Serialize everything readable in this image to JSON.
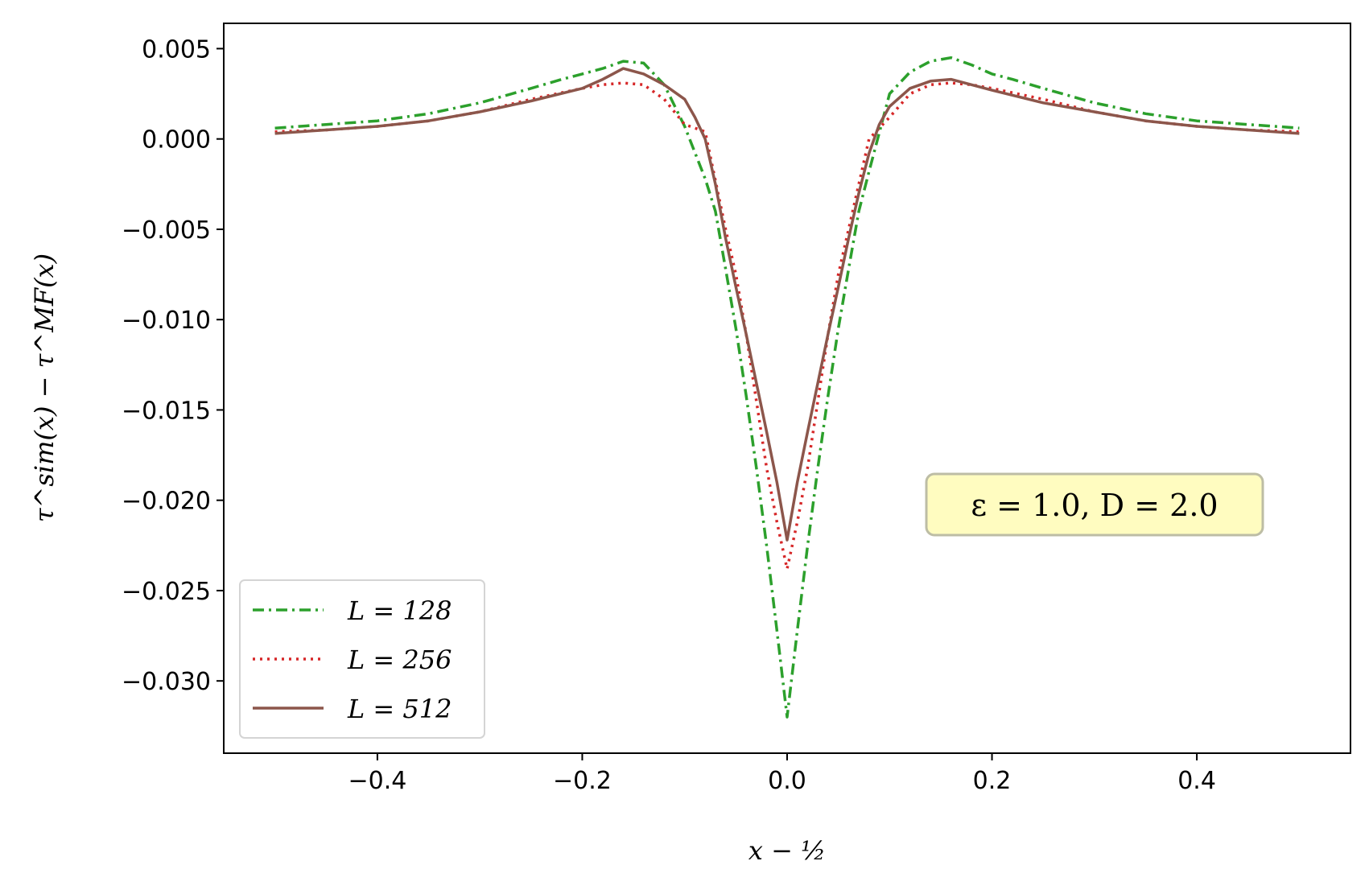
{
  "chart_data": {
    "type": "line",
    "title": "",
    "xlabel": "x − ½",
    "ylabel": "τ^sim(x) − τ^MF(x)",
    "xlim": [
      -0.55,
      0.55
    ],
    "ylim": [
      -0.034,
      0.0064
    ],
    "xticks": [
      -0.4,
      -0.2,
      0.0,
      0.2,
      0.4
    ],
    "xtick_labels": [
      "−0.4",
      "−0.2",
      "0.0",
      "0.2",
      "0.4"
    ],
    "yticks": [
      0.005,
      0.0,
      -0.005,
      -0.01,
      -0.015,
      -0.02,
      -0.025,
      -0.03
    ],
    "ytick_labels": [
      "0.005",
      "0.000",
      "−0.005",
      "−0.010",
      "−0.015",
      "−0.020",
      "−0.025",
      "−0.030"
    ],
    "grid": false,
    "legend_position": "lower-left",
    "annotation": "ε = 1.0,  D = 2.0",
    "annotation_box_color": "#fffcc0",
    "series": [
      {
        "name": "L = 128",
        "color": "#2ca02c",
        "line_style": "dash-dot",
        "x": [
          -0.5,
          -0.45,
          -0.4,
          -0.35,
          -0.3,
          -0.25,
          -0.22,
          -0.2,
          -0.18,
          -0.16,
          -0.14,
          -0.12,
          -0.1,
          -0.08,
          -0.07,
          -0.06,
          -0.05,
          -0.04,
          -0.03,
          -0.02,
          -0.01,
          0.0,
          0.01,
          0.02,
          0.03,
          0.04,
          0.05,
          0.06,
          0.07,
          0.08,
          0.1,
          0.12,
          0.14,
          0.16,
          0.18,
          0.2,
          0.22,
          0.25,
          0.3,
          0.35,
          0.4,
          0.45,
          0.5
        ],
        "y": [
          0.0006,
          0.0008,
          0.001,
          0.0014,
          0.002,
          0.0028,
          0.0033,
          0.0036,
          0.0039,
          0.0043,
          0.0042,
          0.003,
          0.0007,
          -0.0022,
          -0.004,
          -0.0072,
          -0.0105,
          -0.0142,
          -0.0182,
          -0.0225,
          -0.0272,
          -0.032,
          -0.0272,
          -0.0225,
          -0.0182,
          -0.0142,
          -0.0105,
          -0.0072,
          -0.004,
          -0.0018,
          0.0025,
          0.0037,
          0.0043,
          0.0045,
          0.0041,
          0.0036,
          0.0033,
          0.0028,
          0.002,
          0.0014,
          0.001,
          0.0008,
          0.0006
        ]
      },
      {
        "name": "L = 256",
        "color": "#d62728",
        "line_style": "dotted",
        "x": [
          -0.5,
          -0.45,
          -0.4,
          -0.35,
          -0.3,
          -0.25,
          -0.2,
          -0.18,
          -0.16,
          -0.14,
          -0.12,
          -0.1,
          -0.08,
          -0.06,
          -0.05,
          -0.04,
          -0.03,
          -0.02,
          -0.01,
          0.0,
          0.01,
          0.02,
          0.03,
          0.04,
          0.05,
          0.06,
          0.08,
          0.1,
          0.12,
          0.14,
          0.16,
          0.18,
          0.2,
          0.25,
          0.3,
          0.35,
          0.4,
          0.45,
          0.5
        ],
        "y": [
          0.0004,
          0.0005,
          0.0007,
          0.001,
          0.0015,
          0.0022,
          0.0028,
          0.003,
          0.0031,
          0.003,
          0.0022,
          0.0008,
          0.0004,
          -0.005,
          -0.0075,
          -0.0108,
          -0.0145,
          -0.0182,
          -0.0212,
          -0.0238,
          -0.0212,
          -0.0182,
          -0.0145,
          -0.0108,
          -0.0075,
          -0.005,
          0.0,
          0.0012,
          0.0025,
          0.003,
          0.0031,
          0.003,
          0.0028,
          0.0022,
          0.0015,
          0.001,
          0.0007,
          0.0005,
          0.0004
        ]
      },
      {
        "name": "L = 512",
        "color": "#8c564b",
        "line_style": "solid",
        "x": [
          -0.5,
          -0.45,
          -0.4,
          -0.35,
          -0.3,
          -0.25,
          -0.2,
          -0.18,
          -0.16,
          -0.14,
          -0.12,
          -0.1,
          -0.09,
          -0.08,
          -0.07,
          -0.06,
          -0.05,
          -0.04,
          -0.03,
          -0.02,
          -0.01,
          0.0,
          0.01,
          0.02,
          0.03,
          0.04,
          0.05,
          0.06,
          0.07,
          0.08,
          0.09,
          0.1,
          0.12,
          0.14,
          0.16,
          0.18,
          0.2,
          0.25,
          0.3,
          0.35,
          0.4,
          0.45,
          0.5
        ],
        "y": [
          0.0003,
          0.0005,
          0.0007,
          0.001,
          0.0015,
          0.0021,
          0.0028,
          0.0033,
          0.0039,
          0.0036,
          0.003,
          0.0022,
          0.0012,
          0.0,
          -0.0025,
          -0.0055,
          -0.0082,
          -0.0108,
          -0.0135,
          -0.0162,
          -0.019,
          -0.0222,
          -0.019,
          -0.0162,
          -0.0135,
          -0.0108,
          -0.0082,
          -0.0055,
          -0.003,
          -0.0008,
          0.0008,
          0.0018,
          0.0028,
          0.0032,
          0.0033,
          0.003,
          0.0027,
          0.002,
          0.0015,
          0.001,
          0.0007,
          0.0005,
          0.0003
        ]
      }
    ]
  }
}
